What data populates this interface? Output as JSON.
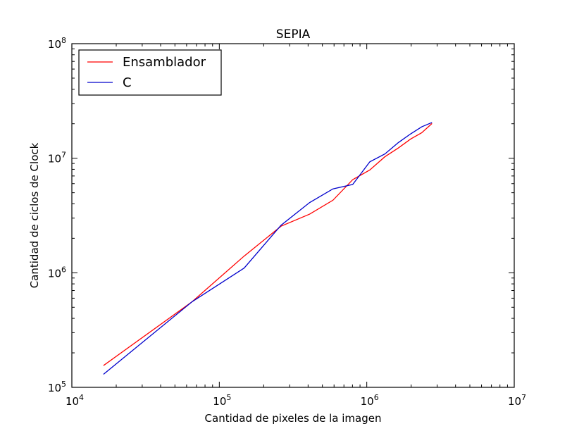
{
  "chart_data": {
    "type": "line",
    "title": "SEPIA",
    "xlabel": "Cantidad de pixeles de la imagen",
    "ylabel": "Cantidad de ciclos de Clock",
    "xscale": "log",
    "yscale": "log",
    "xlim": [
      10000,
      10000000
    ],
    "ylim": [
      100000,
      100000000
    ],
    "x_ticks": [
      {
        "value": 10000,
        "base": "10",
        "exp": "4"
      },
      {
        "value": 100000,
        "base": "10",
        "exp": "5"
      },
      {
        "value": 1000000,
        "base": "10",
        "exp": "6"
      },
      {
        "value": 10000000,
        "base": "10",
        "exp": "7"
      }
    ],
    "y_ticks": [
      {
        "value": 100000,
        "base": "10",
        "exp": "5"
      },
      {
        "value": 1000000,
        "base": "10",
        "exp": "6"
      },
      {
        "value": 10000000,
        "base": "10",
        "exp": "7"
      },
      {
        "value": 100000000,
        "base": "10",
        "exp": "8"
      }
    ],
    "grid": false,
    "legend": "top-left",
    "series": [
      {
        "name": "Ensamblador",
        "color": "#ff0000",
        "x": [
          16384,
          65536,
          147456,
          262144,
          409600,
          589824,
          802816,
          1048576,
          1327104,
          1638400,
          1982464,
          2359296,
          2768896
        ],
        "y": [
          155000,
          560000,
          1400000,
          2550000,
          3250000,
          4300000,
          6500000,
          7900000,
          10300000,
          12300000,
          14700000,
          16700000,
          20100000
        ]
      },
      {
        "name": "C",
        "color": "#0000cc",
        "x": [
          16384,
          65536,
          147456,
          262144,
          409600,
          589824,
          802816,
          1048576,
          1327104,
          1638400,
          1982464,
          2359296,
          2768896
        ],
        "y": [
          130000,
          560000,
          1100000,
          2600000,
          4100000,
          5400000,
          5900000,
          9300000,
          10900000,
          13700000,
          16300000,
          18800000,
          20500000
        ]
      }
    ]
  }
}
